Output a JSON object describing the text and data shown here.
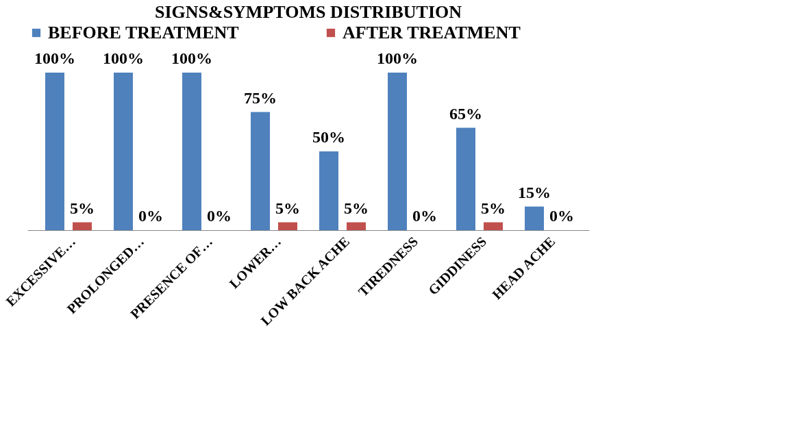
{
  "chart_data": {
    "type": "bar",
    "title": "SIGNS&SYMPTOMS DISTRIBUTION",
    "categories": [
      "EXCESSIVE…",
      "PROLONGED…",
      "PRESENCE OF…",
      "LOWER…",
      "LOW  BACK ACHE",
      "TIREDNESS",
      "GIDDINESS",
      "HEAD ACHE"
    ],
    "series": [
      {
        "name": "BEFORE TREATMENT",
        "color": "#4f81bd",
        "values": [
          100,
          100,
          100,
          75,
          50,
          100,
          65,
          15
        ],
        "value_labels": [
          "100%",
          "100%",
          "100%",
          "75%",
          "50%",
          "100%",
          "65%",
          "15%"
        ]
      },
      {
        "name": "AFTER TREATMENT",
        "color": "#c0504d",
        "values": [
          5,
          0,
          0,
          5,
          5,
          0,
          5,
          0
        ],
        "value_labels": [
          "5%",
          "0%",
          "0%",
          "5%",
          "5%",
          "0%",
          "5%",
          "0%"
        ]
      }
    ],
    "legend": "top",
    "grid": false
  }
}
